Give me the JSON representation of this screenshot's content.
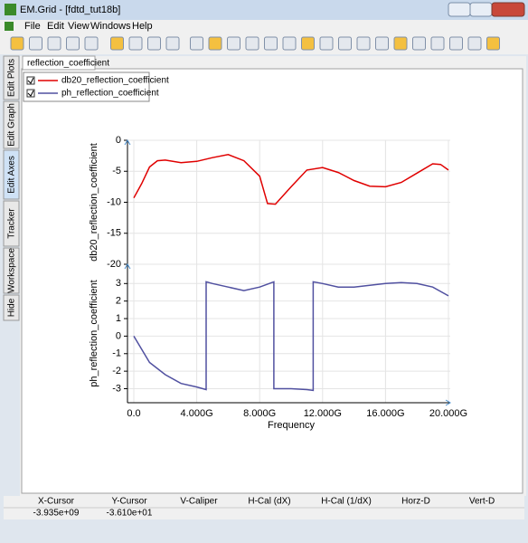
{
  "window": {
    "title": "EM.Grid - [fdtd_tut18b]",
    "menu": [
      "File",
      "Edit",
      "View",
      "Windows",
      "Help"
    ],
    "side_tabs": [
      "Edit Plots",
      "Edit Graph",
      "Edit Axes",
      "Tracker",
      "Workspace",
      "Hide"
    ],
    "tab": "reflection_coefficient"
  },
  "status": {
    "headers": [
      "X-Cursor",
      "Y-Cursor",
      "V-Caliper",
      "H-Cal (dX)",
      "H-Cal (1/dX)",
      "Horz-D",
      "Vert-D"
    ],
    "values": [
      "-3.935e+09",
      "-3.610e+01"
    ]
  },
  "chart_data": [
    {
      "type": "line",
      "ylabel": "db20_reflection_coefficient",
      "xlim": [
        0,
        20000000000
      ],
      "ylim": [
        -20,
        0
      ],
      "yticks": [
        0,
        -5,
        -10,
        -15,
        -20
      ],
      "grid": true,
      "series": [
        {
          "name": "db20_reflection_coefficient",
          "color": "#e00000",
          "x": [
            0,
            500000000.0,
            1000000000.0,
            1500000000.0,
            2000000000.0,
            3000000000.0,
            4000000000.0,
            5000000000.0,
            6000000000.0,
            7000000000.0,
            8000000000.0,
            8500000000.0,
            9000000000.0,
            10000000000.0,
            11000000000.0,
            12000000000.0,
            13000000000.0,
            14000000000.0,
            15000000000.0,
            16000000000.0,
            17000000000.0,
            18000000000.0,
            19000000000.0,
            19500000000.0,
            20000000000.0
          ],
          "values": [
            -9.3,
            -7,
            -4.3,
            -3.3,
            -3.2,
            -3.6,
            -3.4,
            -2.8,
            -2.3,
            -3.3,
            -5.8,
            -10.2,
            -10.3,
            -7.5,
            -4.8,
            -4.4,
            -5.2,
            -6.5,
            -7.4,
            -7.5,
            -6.8,
            -5.3,
            -3.8,
            -3.9,
            -4.8
          ]
        }
      ]
    },
    {
      "type": "line",
      "ylabel": "ph_reflection_coefficient",
      "xlabel": "Frequency",
      "xlim": [
        0,
        20000000000
      ],
      "ylim": [
        -3.8,
        4.1
      ],
      "yticks": [
        3,
        2,
        1,
        0,
        -1,
        -2,
        -3
      ],
      "grid": true,
      "xticks": [
        {
          "value": 0,
          "label": "0.0"
        },
        {
          "value": 4000000000,
          "label": "4.000G"
        },
        {
          "value": 8000000000,
          "label": "8.000G"
        },
        {
          "value": 12000000000,
          "label": "12.000G"
        },
        {
          "value": 16000000000,
          "label": "16.000G"
        },
        {
          "value": 20000000000,
          "label": "20.000G"
        }
      ],
      "series": [
        {
          "name": "ph_reflection_coefficient",
          "color": "#5050a0",
          "x": [
            0,
            1000000000.0,
            2000000000.0,
            3000000000.0,
            4000000000.0,
            4600000000.0,
            4600000000.0,
            5000000000.0,
            6000000000.0,
            7000000000.0,
            8000000000.0,
            8900000000.0,
            8900000000.0,
            10000000000.0,
            11000000000.0,
            11400000000.0,
            11400000000.0,
            12000000000.0,
            13000000000.0,
            14000000000.0,
            15000000000.0,
            16000000000.0,
            17000000000.0,
            18000000000.0,
            19000000000.0,
            20000000000.0
          ],
          "values": [
            0,
            -1.5,
            -2.2,
            -2.7,
            -2.9,
            -3.05,
            3.1,
            3.0,
            2.8,
            2.6,
            2.8,
            3.1,
            -3.0,
            -3.0,
            -3.05,
            -3.1,
            3.1,
            3.0,
            2.8,
            2.8,
            2.9,
            3.0,
            3.05,
            3.0,
            2.8,
            2.3
          ]
        }
      ]
    }
  ]
}
